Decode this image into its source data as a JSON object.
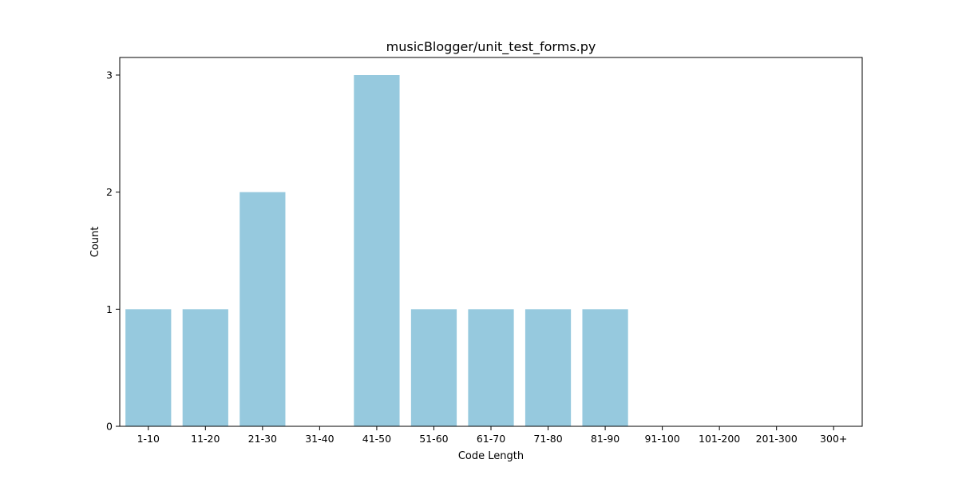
{
  "chart_data": {
    "type": "bar",
    "title": "musicBlogger/unit_test_forms.py",
    "xlabel": "Code Length",
    "ylabel": "Count",
    "categories": [
      "1-10",
      "11-20",
      "21-30",
      "31-40",
      "41-50",
      "51-60",
      "61-70",
      "71-80",
      "81-90",
      "91-100",
      "101-200",
      "201-300",
      "300+"
    ],
    "values": [
      1,
      1,
      2,
      0,
      3,
      1,
      1,
      1,
      1,
      0,
      0,
      0,
      0
    ],
    "ylim": [
      0,
      3.15
    ],
    "yticks": [
      0,
      1,
      2,
      3
    ],
    "grid": false,
    "legend": "none",
    "bar_color": "#96c9de"
  }
}
